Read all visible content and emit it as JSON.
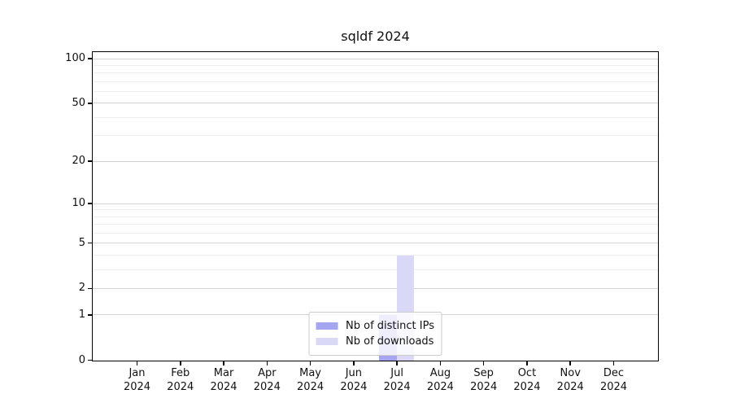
{
  "chart_data": {
    "type": "bar",
    "title": "sqldf 2024",
    "categories": [
      "Jan",
      "Feb",
      "Mar",
      "Apr",
      "May",
      "Jun",
      "Jul",
      "Aug",
      "Sep",
      "Oct",
      "Nov",
      "Dec"
    ],
    "x_year_label": "2024",
    "series": [
      {
        "name": "Nb of distinct IPs",
        "color": "#a5a5f0",
        "values": [
          0,
          0,
          0,
          0,
          0,
          0,
          1,
          0,
          0,
          0,
          0,
          0
        ]
      },
      {
        "name": "Nb of downloads",
        "color": "#d9d9f7",
        "values": [
          0,
          0,
          0,
          0,
          0,
          0,
          4,
          0,
          0,
          0,
          0,
          0
        ]
      }
    ],
    "y_scale": "log1p",
    "ylim": [
      0,
      110
    ],
    "y_major_ticks": [
      0,
      1,
      2,
      5,
      10,
      20,
      50,
      100
    ],
    "y_minor_ticks": [
      3,
      4,
      6,
      7,
      8,
      9,
      30,
      40,
      60,
      70,
      80,
      90
    ],
    "grid": "horizontal",
    "legend_position": "lower center",
    "colors": {
      "grid_major": "#d4d4d4",
      "grid_minor": "#efefef",
      "axis": "#000000",
      "legend_border": "#cccccc",
      "text": "#111111"
    }
  }
}
